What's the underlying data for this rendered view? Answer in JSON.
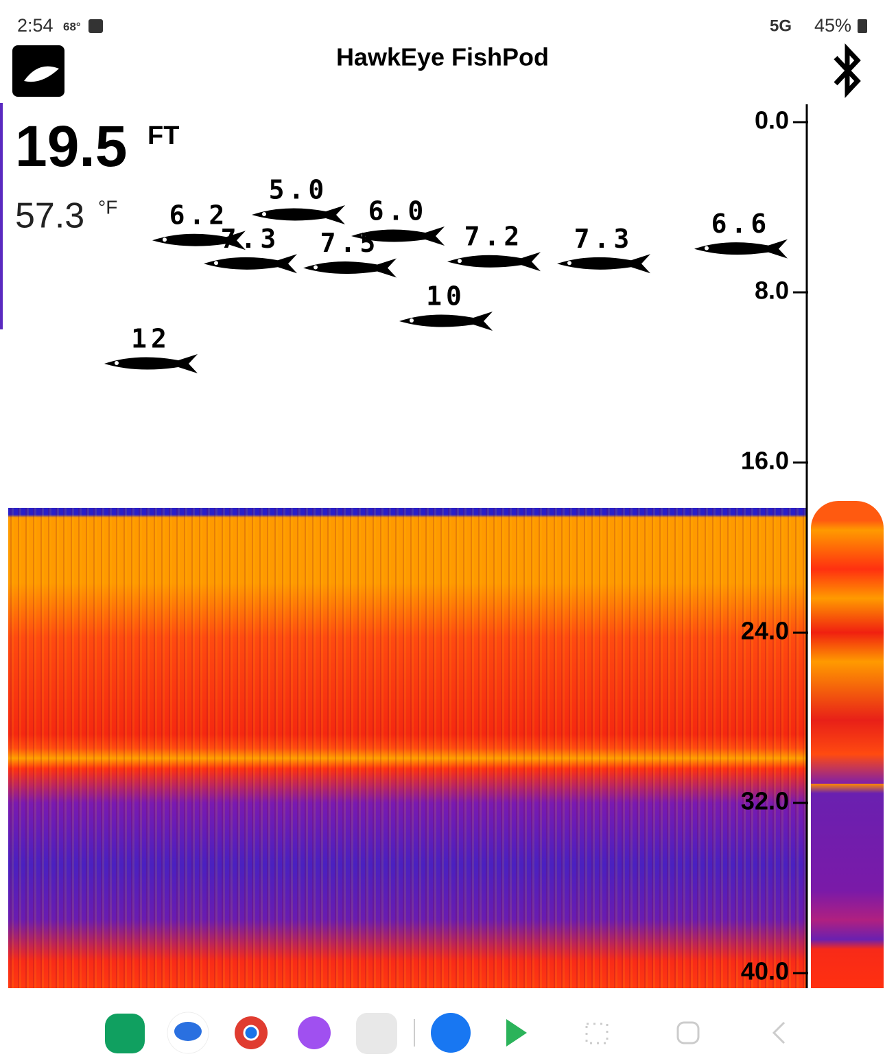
{
  "status_bar": {
    "time": "2:54",
    "temperature": "68°",
    "network": "5G",
    "battery": "45%"
  },
  "header": {
    "title": "HawkEye FishPod"
  },
  "readout": {
    "depth": "19.5",
    "depth_unit": "FT",
    "water_temp": "57.3",
    "temp_unit": "°F"
  },
  "depth_scale": {
    "lim": [
      0,
      40
    ],
    "ticks": [
      {
        "value": 0,
        "label": "0.0"
      },
      {
        "value": 8,
        "label": "8.0"
      },
      {
        "value": 16,
        "label": "16.0"
      },
      {
        "value": 24,
        "label": "24.0"
      },
      {
        "value": 32,
        "label": "32.0"
      },
      {
        "value": 40,
        "label": "40.0"
      }
    ]
  },
  "fish": [
    {
      "value": 5,
      "label": "5.0"
    },
    {
      "value": 6.2,
      "label": "6.2"
    },
    {
      "value": 6,
      "label": "6.0"
    },
    {
      "value": 7.3,
      "label": "7.3"
    },
    {
      "value": 7.5,
      "label": "7.5"
    },
    {
      "value": 10,
      "label": "10"
    },
    {
      "value": 12,
      "label": "12"
    },
    {
      "value": 7.2,
      "label": "7.2"
    },
    {
      "value": 7.3,
      "label": "7.3"
    },
    {
      "value": 6.6,
      "label": "6.6"
    }
  ]
}
